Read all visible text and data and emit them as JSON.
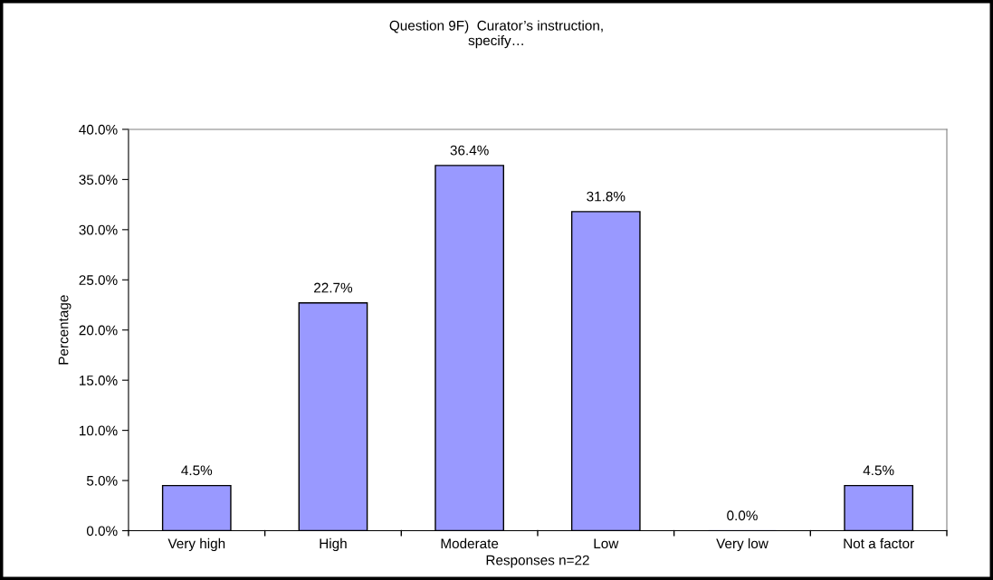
{
  "chart_data": {
    "type": "bar",
    "title": "Question 9F)  Curator’s instruction,\nspecify…",
    "xlabel": "Responses n=22",
    "ylabel": "Percentage",
    "categories": [
      "Very high",
      "High",
      "Moderate",
      "Low",
      "Very low",
      "Not a factor"
    ],
    "values": [
      4.5,
      22.7,
      36.4,
      31.8,
      0.0,
      4.5
    ],
    "color": "#9999ff",
    "value_labels": [
      "4.5%",
      "22.7%",
      "36.4%",
      "31.8%",
      "0.0%",
      "4.5%"
    ],
    "ylim": [
      0,
      40
    ],
    "yticks": [
      {
        "value": 0,
        "label": "0.0%"
      },
      {
        "value": 5,
        "label": "5.0%"
      },
      {
        "value": 10,
        "label": "10.0%"
      },
      {
        "value": 15,
        "label": "15.0%"
      },
      {
        "value": 20,
        "label": "20.0%"
      },
      {
        "value": 25,
        "label": "25.0%"
      },
      {
        "value": 30,
        "label": "30.0%"
      },
      {
        "value": 35,
        "label": "35.0%"
      },
      {
        "value": 40,
        "label": "40.0%"
      }
    ],
    "grid": false,
    "legend": false
  }
}
